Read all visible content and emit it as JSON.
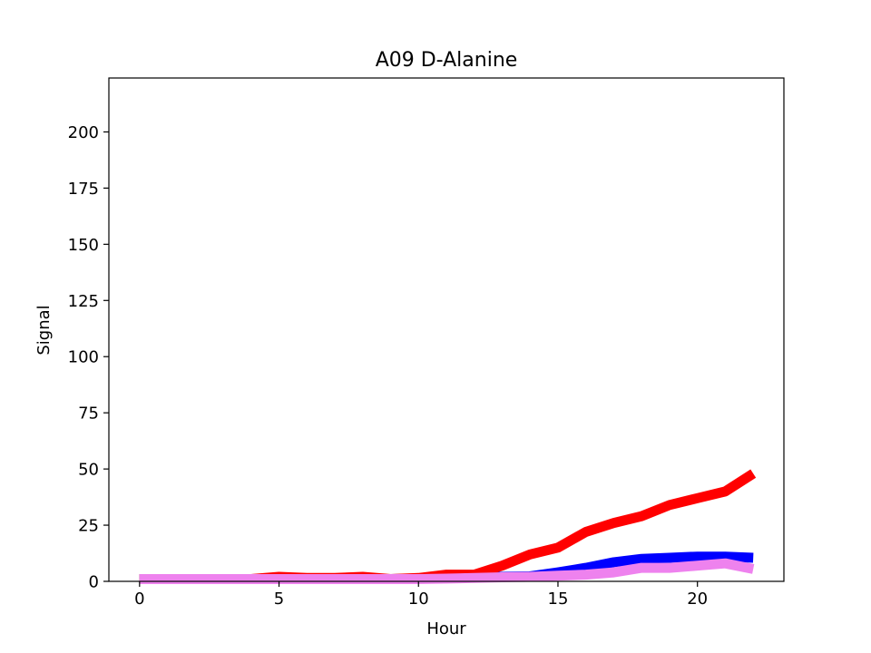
{
  "chart_data": {
    "type": "line",
    "title": "A09 D-Alanine",
    "xlabel": "Hour",
    "ylabel": "Signal",
    "xlim": [
      -1.1,
      23.1
    ],
    "ylim": [
      0,
      224
    ],
    "xticks": [
      0,
      5,
      10,
      15,
      20
    ],
    "yticks": [
      0,
      25,
      50,
      75,
      100,
      125,
      150,
      175,
      200
    ],
    "grid": false,
    "series": [
      {
        "color": "#0000ff",
        "x": [
          0,
          1,
          2,
          3,
          4,
          5,
          6,
          7,
          8,
          9,
          10,
          11,
          12,
          13,
          14,
          15,
          16,
          17,
          18,
          19,
          20,
          21,
          22
        ],
        "y": [
          1,
          1,
          1,
          1,
          1,
          1.2,
          1,
          1,
          1,
          1,
          1.2,
          1.5,
          1.8,
          2,
          2.2,
          4,
          6,
          8.5,
          10,
          10.5,
          11,
          11,
          10.5
        ]
      },
      {
        "color": "#ff0000",
        "x": [
          0,
          1,
          2,
          3,
          4,
          5,
          6,
          7,
          8,
          9,
          10,
          11,
          12,
          13,
          14,
          15,
          16,
          17,
          18,
          19,
          20,
          21,
          22
        ],
        "y": [
          1,
          1,
          1,
          1,
          1,
          2,
          1.5,
          1.5,
          2,
          1,
          1.5,
          3,
          3,
          7,
          12,
          15,
          22,
          26,
          29,
          34,
          37,
          40,
          48
        ]
      },
      {
        "color": "#ee82ee",
        "x": [
          0,
          1,
          2,
          3,
          4,
          5,
          6,
          7,
          8,
          9,
          10,
          11,
          12,
          13,
          14,
          15,
          16,
          17,
          18,
          19,
          20,
          21,
          22
        ],
        "y": [
          1,
          1,
          1,
          1,
          1,
          1,
          1,
          1,
          1,
          1,
          1,
          1.2,
          1.5,
          1.8,
          2,
          2.5,
          3,
          4,
          6,
          6,
          7,
          8,
          5.5
        ]
      }
    ]
  }
}
